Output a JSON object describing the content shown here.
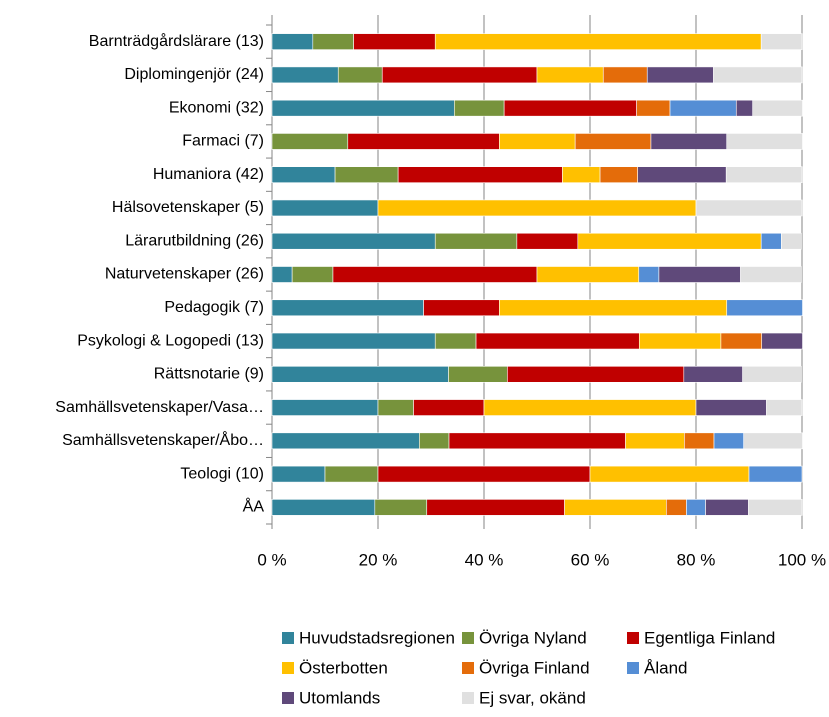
{
  "chart_data": {
    "type": "stacked_bar_horizontal",
    "categories": [
      "Barnträdgårdslärare (13)",
      "Diplomingenjör (24)",
      "Ekonomi (32)",
      "Farmaci (7)",
      "Humaniora (42)",
      "Hälsovetenskaper (5)",
      "Lärarutbildning (26)",
      "Naturvetenskaper (26)",
      "Pedagogik (7)",
      "Psykologi & Logopedi (13)",
      "Rättsnotarie (9)",
      "Samhällsvetenskaper/Vasa…",
      "Samhällsvetenskaper/Åbo…",
      "Teologi (10)",
      "ÅA"
    ],
    "series": [
      {
        "name": "Huvudstadsregionen",
        "color": "#31849b",
        "values": [
          7.7,
          12.5,
          34.4,
          0,
          11.9,
          20,
          30.8,
          3.8,
          28.6,
          30.8,
          33.3,
          20,
          27.8,
          10,
          19.4
        ]
      },
      {
        "name": "Övriga Nyland",
        "color": "#77933c",
        "values": [
          7.7,
          8.3,
          9.4,
          14.3,
          11.9,
          0,
          15.4,
          7.7,
          0,
          7.7,
          11.1,
          6.7,
          5.6,
          10,
          9.8
        ]
      },
      {
        "name": "Egentliga Finland",
        "color": "#c00000",
        "values": [
          15.4,
          29.2,
          25,
          28.6,
          31,
          0,
          11.5,
          38.5,
          14.3,
          30.8,
          33.3,
          13.3,
          33.3,
          40,
          26
        ]
      },
      {
        "name": "Österbotten",
        "color": "#ffc000",
        "values": [
          61.5,
          12.5,
          0,
          14.3,
          7.1,
          60,
          34.6,
          19.2,
          42.9,
          15.4,
          0,
          40,
          11.1,
          30,
          19.2
        ]
      },
      {
        "name": "Övriga Finland",
        "color": "#e46c0a",
        "values": [
          0,
          8.3,
          6.3,
          14.3,
          7.1,
          0,
          0,
          0,
          0,
          7.7,
          0,
          0,
          5.6,
          0,
          3.8
        ]
      },
      {
        "name": "Åland",
        "color": "#558ed5",
        "values": [
          0,
          0,
          12.5,
          0,
          0,
          0,
          3.8,
          3.8,
          14.3,
          0,
          0,
          0,
          5.6,
          10,
          3.6
        ]
      },
      {
        "name": "Utomlands",
        "color": "#5f497a",
        "values": [
          0,
          12.5,
          3.1,
          14.3,
          16.7,
          0,
          0,
          15.4,
          0,
          7.7,
          11.1,
          13.3,
          0,
          0,
          8.1
        ]
      },
      {
        "name": "Ej svar, okänd",
        "color": "#e0e0e0",
        "values": [
          7.7,
          16.7,
          9.4,
          14.3,
          14.3,
          20,
          3.8,
          11.5,
          0,
          0,
          11.1,
          6.7,
          11.1,
          0,
          10.1
        ]
      }
    ],
    "xlim": [
      0,
      100
    ],
    "xticks": [
      {
        "value": 0,
        "label": "0 %"
      },
      {
        "value": 20,
        "label": "20 %"
      },
      {
        "value": 40,
        "label": "40 %"
      },
      {
        "value": 60,
        "label": "60 %"
      },
      {
        "value": 80,
        "label": "80 %"
      },
      {
        "value": 100,
        "label": "100 %"
      }
    ],
    "grid": true
  }
}
